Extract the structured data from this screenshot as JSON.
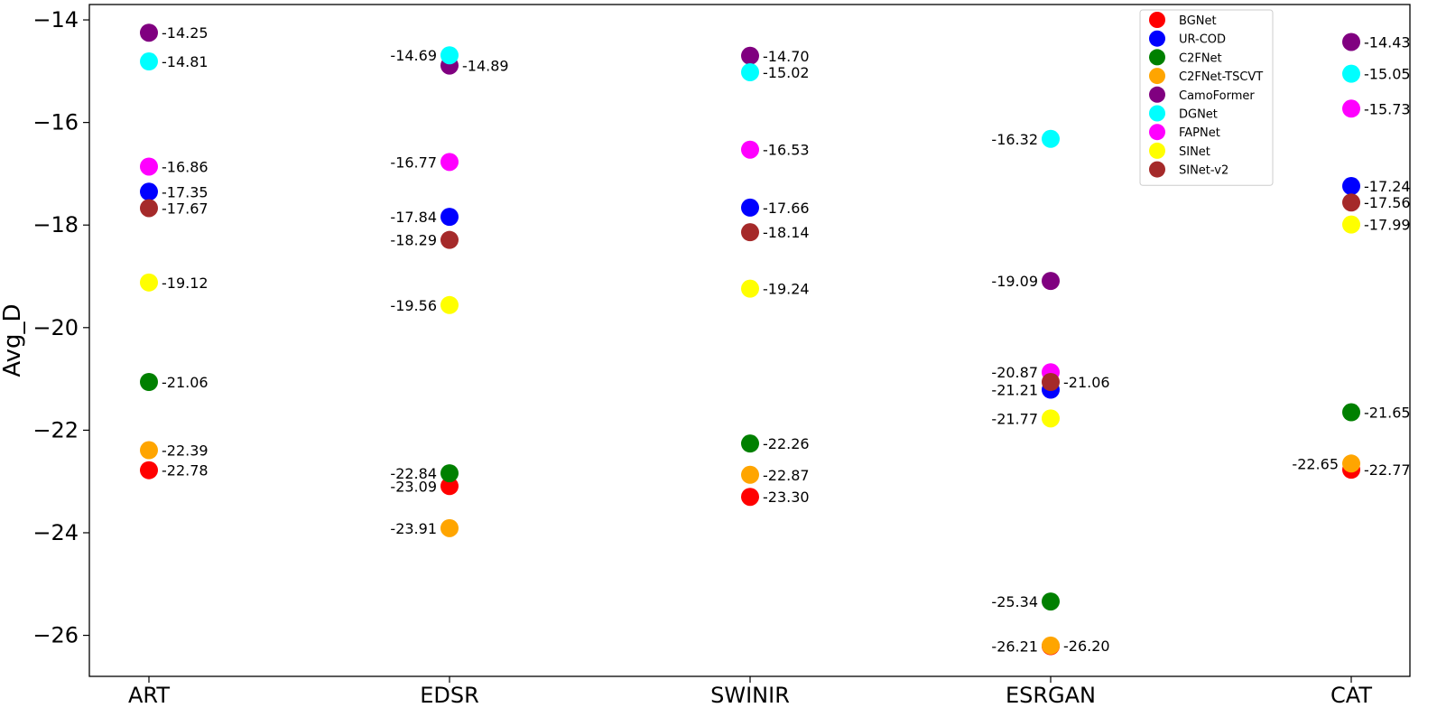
{
  "chart_data": {
    "type": "scatter",
    "title": "",
    "xlabel": "",
    "ylabel": "Avg_D",
    "categories": [
      "ART",
      "EDSR",
      "SWINIR",
      "ESRGAN",
      "CAT"
    ],
    "ylim": [
      -26.8,
      -13.7
    ],
    "yticks": [
      -14,
      -16,
      -18,
      -20,
      -22,
      -24,
      -26
    ],
    "ytick_labels": [
      "−14",
      "−16",
      "−18",
      "−20",
      "−22",
      "−24",
      "−26"
    ],
    "grid": false,
    "legend_position": "top-right",
    "series": [
      {
        "name": "BGNet",
        "color": "#ff0000",
        "values": [
          -22.78,
          -23.09,
          -23.3,
          -26.21,
          -22.77
        ],
        "labels": [
          "-22.78",
          "-23.09",
          "-23.30",
          "-26.21",
          "-22.77"
        ],
        "label_side": [
          "right",
          "left",
          "right",
          "left",
          "right"
        ]
      },
      {
        "name": "UR-COD",
        "color": "#0000ff",
        "values": [
          -17.35,
          -17.84,
          -17.66,
          -21.21,
          -17.24
        ],
        "labels": [
          "-17.35",
          "-17.84",
          "-17.66",
          "-21.21",
          "-17.24"
        ],
        "label_side": [
          "right",
          "left",
          "right",
          "left",
          "right"
        ]
      },
      {
        "name": "C2FNet",
        "color": "#008000",
        "values": [
          -21.06,
          -22.84,
          -22.26,
          -25.34,
          -21.65
        ],
        "labels": [
          "-21.06",
          "-22.84",
          "-22.26",
          "-25.34",
          "-21.65"
        ],
        "label_side": [
          "right",
          "left",
          "right",
          "left",
          "right"
        ]
      },
      {
        "name": "C2FNet-TSCVT",
        "color": "#ffa500",
        "values": [
          -22.39,
          -23.91,
          -22.87,
          -26.2,
          -22.65
        ],
        "labels": [
          "-22.39",
          "-23.91",
          "-22.87",
          "-26.20",
          "-22.65"
        ],
        "label_side": [
          "right",
          "left",
          "right",
          "right",
          "left"
        ]
      },
      {
        "name": "CamoFormer",
        "color": "#800080",
        "values": [
          -14.25,
          -14.89,
          -14.7,
          -19.09,
          -14.43
        ],
        "labels": [
          "-14.25",
          "-14.89",
          "-14.70",
          "-19.09",
          "-14.43"
        ],
        "label_side": [
          "right",
          "right",
          "right",
          "left",
          "right"
        ]
      },
      {
        "name": "DGNet",
        "color": "#00ffff",
        "values": [
          -14.81,
          -14.69,
          -15.02,
          -16.32,
          -15.05
        ],
        "labels": [
          "-14.81",
          "-14.69",
          "-15.02",
          "-16.32",
          "-15.05"
        ],
        "label_side": [
          "right",
          "left",
          "right",
          "left",
          "right"
        ]
      },
      {
        "name": "FAPNet",
        "color": "#ff00ff",
        "values": [
          -16.86,
          -16.77,
          -16.53,
          -20.87,
          -15.73
        ],
        "labels": [
          "-16.86",
          "-16.77",
          "-16.53",
          "-20.87",
          "-15.73"
        ],
        "label_side": [
          "right",
          "left",
          "right",
          "left",
          "right"
        ]
      },
      {
        "name": "SINet",
        "color": "#ffff00",
        "values": [
          -19.12,
          -19.56,
          -19.24,
          -21.77,
          -17.99
        ],
        "labels": [
          "-19.12",
          "-19.56",
          "-19.24",
          "-21.77",
          "-17.99"
        ],
        "label_side": [
          "right",
          "left",
          "right",
          "left",
          "right"
        ]
      },
      {
        "name": "SINet-v2",
        "color": "#a52a2a",
        "values": [
          -17.67,
          -18.29,
          -18.14,
          -21.06,
          -17.56
        ],
        "labels": [
          "-17.67",
          "-18.29",
          "-18.14",
          "-21.06",
          "-17.56"
        ],
        "label_side": [
          "right",
          "left",
          "right",
          "right",
          "right"
        ]
      }
    ]
  }
}
